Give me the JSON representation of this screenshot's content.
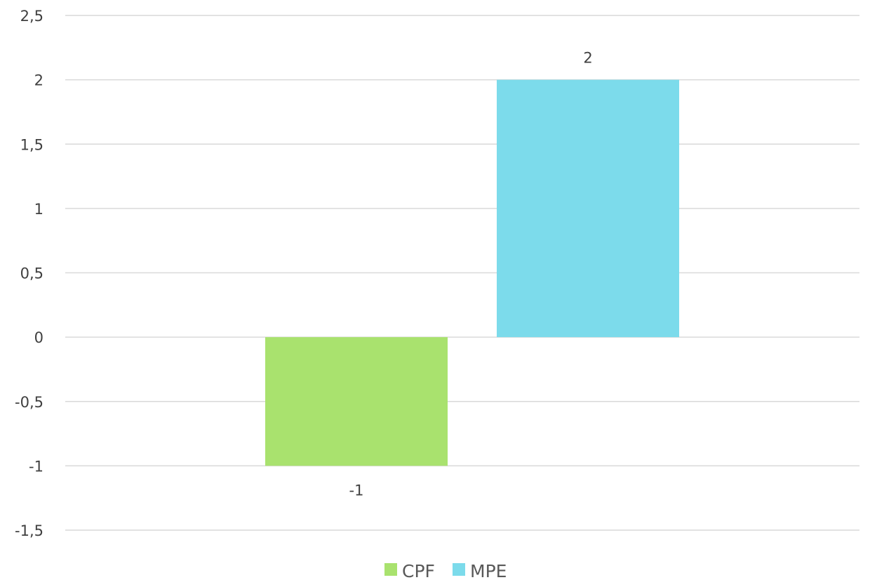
{
  "chart_data": {
    "type": "bar",
    "title": "",
    "xlabel": "",
    "ylabel": "",
    "ylim": [
      -1.5,
      2.5
    ],
    "yticks": [
      2.5,
      2,
      1.5,
      1,
      0.5,
      0,
      -0.5,
      -1,
      -1.5
    ],
    "ytick_labels": [
      "2,5",
      "2",
      "1,5",
      "1",
      "0,5",
      "0",
      "-0,5",
      "-1",
      "-1,5"
    ],
    "grid": true,
    "legend_position": "bottom",
    "series": [
      {
        "name": "CPF",
        "value": -1,
        "label": "-1",
        "color": "#a9e26e"
      },
      {
        "name": "MPE",
        "value": 2,
        "label": "2",
        "color": "#7cdbeb"
      }
    ]
  }
}
